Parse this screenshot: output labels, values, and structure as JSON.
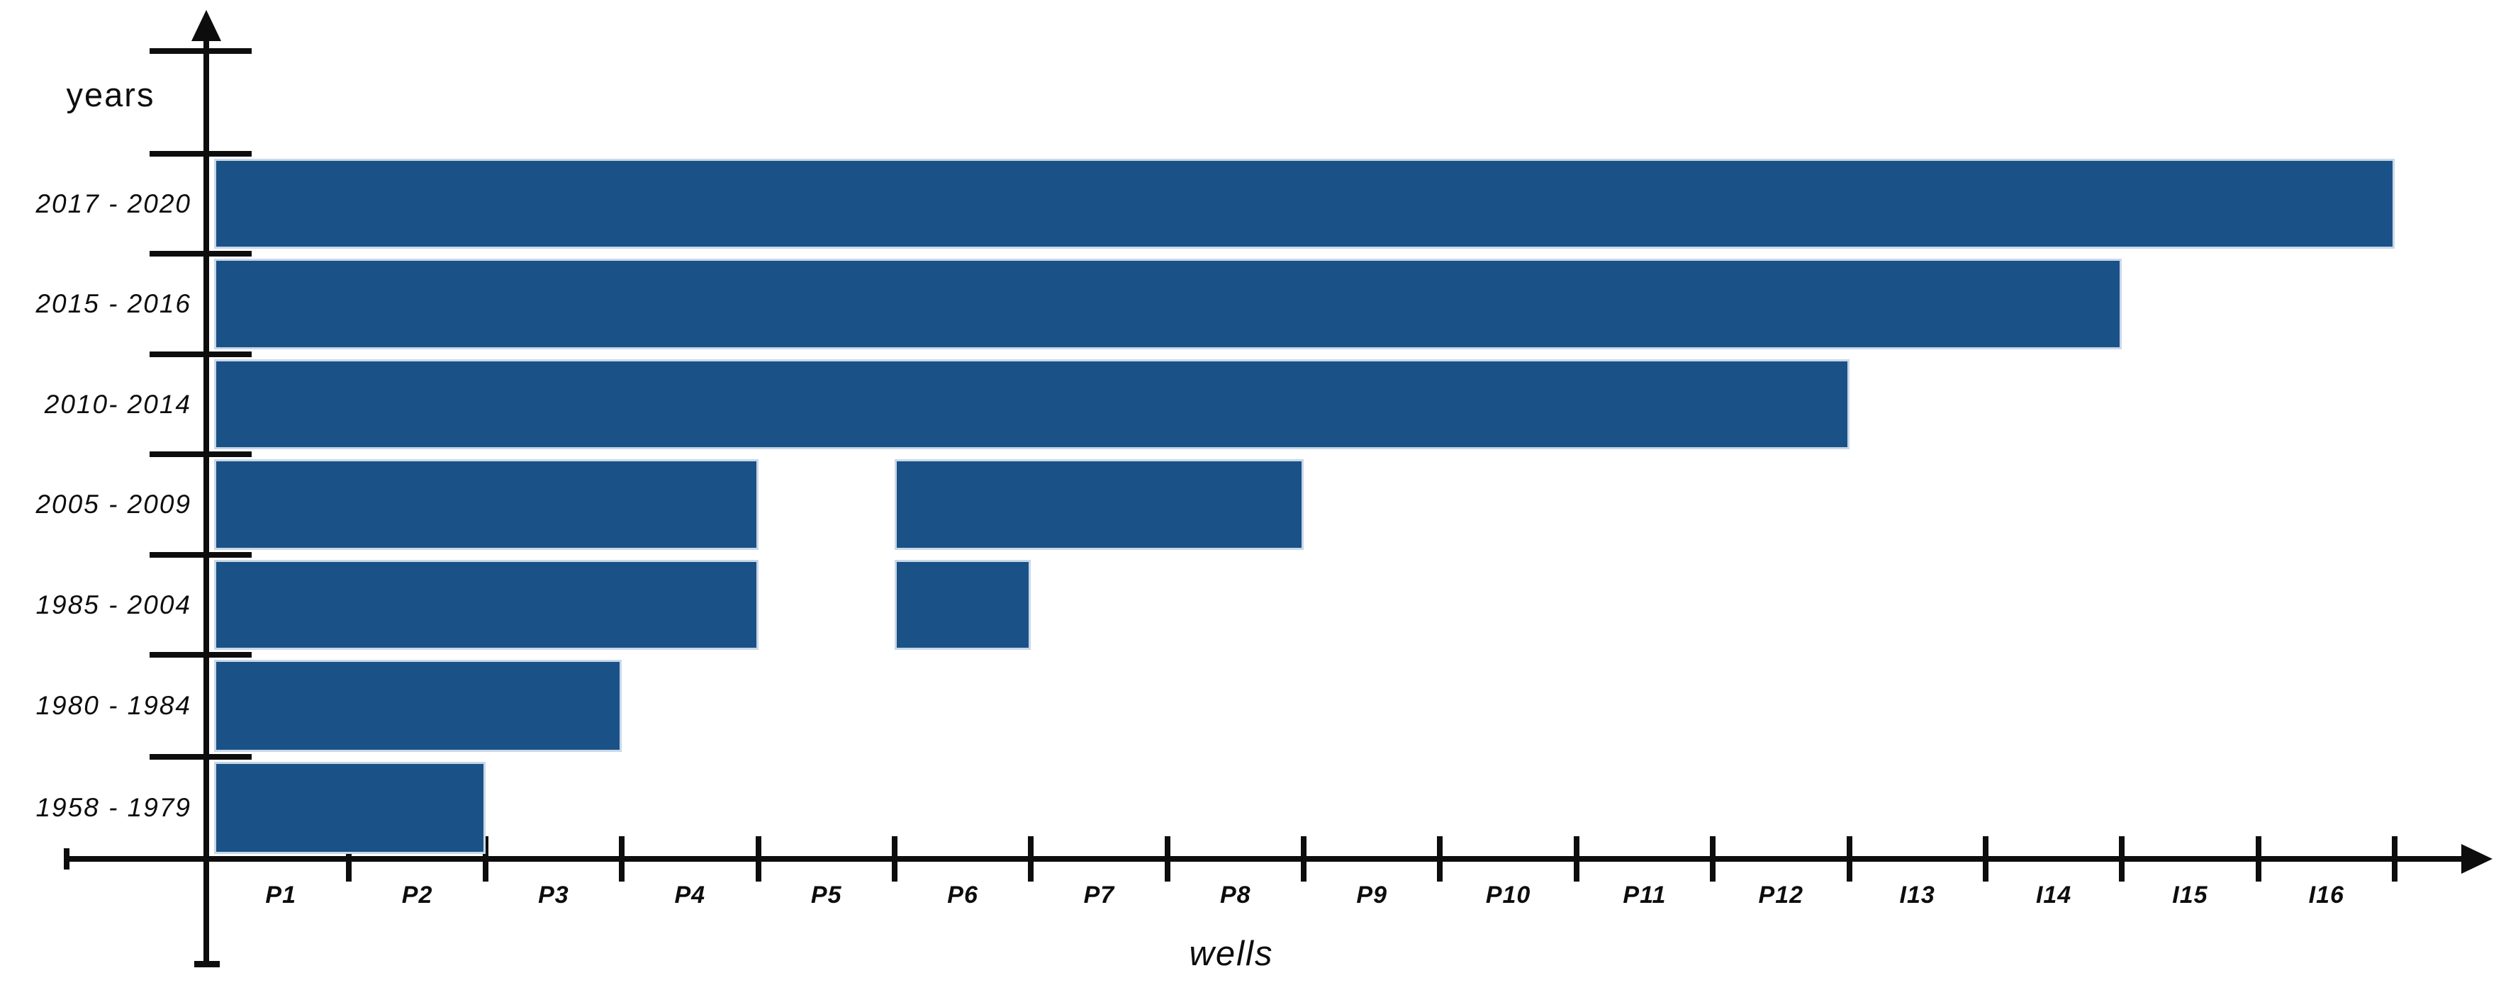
{
  "page": {
    "background": "#ffffff"
  },
  "chart_data": {
    "type": "bar",
    "orientation": "horizontal",
    "title": "",
    "ylabel": "years",
    "xlabel": "wells",
    "grid": false,
    "legend": "none",
    "x_axis_unit": "wells (1 well per tick)",
    "x_range_wells": [
      0,
      16
    ],
    "x_tick_labels": [
      "P1",
      "P2",
      "P3",
      "P4",
      "P5",
      "P6",
      "P7",
      "P8",
      "P9",
      "P10",
      "P11",
      "P12",
      "I13",
      "I14",
      "I15",
      "I16"
    ],
    "categories": [
      "2017 - 2020",
      "2015 - 2016",
      "2010- 2014",
      "2005 - 2009",
      "1985 - 2004",
      "1980 - 1984",
      "1958 - 1979"
    ],
    "series": [
      {
        "name": "2017 - 2020",
        "segments_wells": [
          [
            0,
            16
          ]
        ],
        "total_wells": 16,
        "wells_covered": "P1-I16"
      },
      {
        "name": "2015 - 2016",
        "segments_wells": [
          [
            0,
            14
          ]
        ],
        "total_wells": 14,
        "wells_covered": "P1-I14"
      },
      {
        "name": "2010- 2014",
        "segments_wells": [
          [
            0,
            12
          ]
        ],
        "total_wells": 12,
        "wells_covered": "P1-P12"
      },
      {
        "name": "2005 - 2009",
        "segments_wells": [
          [
            0,
            4
          ],
          [
            5,
            8
          ]
        ],
        "total_wells": 7,
        "wells_covered": "P1-P4, P6-P8"
      },
      {
        "name": "1985 - 2004",
        "segments_wells": [
          [
            0,
            4
          ],
          [
            5,
            6
          ]
        ],
        "total_wells": 5,
        "wells_covered": "P1-P4, P6"
      },
      {
        "name": "1980 - 1984",
        "segments_wells": [
          [
            0,
            3
          ]
        ],
        "total_wells": 3,
        "wells_covered": "P1-P3"
      },
      {
        "name": "1958 - 1979",
        "segments_wells": [
          [
            0,
            2
          ]
        ],
        "total_wells": 2,
        "wells_covered": "P1-P2"
      }
    ],
    "bar_color": "#1a5287",
    "bar_border_color": "#c9d8e8",
    "axis_color": "#0d0d0d",
    "background_color": "#ffffff"
  }
}
